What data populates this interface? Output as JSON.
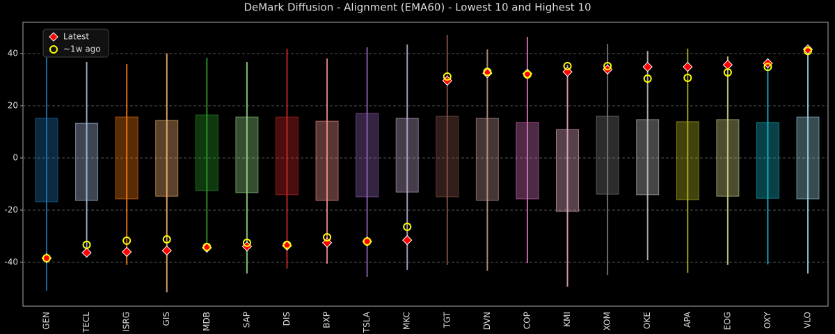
{
  "chart_data": {
    "type": "range_box",
    "title": "DeMark Diffusion - Alignment (EMA60) - Lowest 10 and Highest 10",
    "categories": [
      "GEN",
      "TECL",
      "ISRG",
      "GIS",
      "MDB",
      "SAP",
      "DIS",
      "BXP",
      "TSLA",
      "MKC",
      "TGT",
      "DVN",
      "COP",
      "KMI",
      "XOM",
      "OKE",
      "APA",
      "EOG",
      "OXY",
      "VLO"
    ],
    "colors": [
      "#1f77b4",
      "#aec7e8",
      "#ff7f0e",
      "#ffbb78",
      "#2ca02c",
      "#98df8a",
      "#d62728",
      "#ff9896",
      "#9467bd",
      "#c5b0d5",
      "#8c564b",
      "#c49c94",
      "#e377c2",
      "#f7b6d2",
      "#7f7f7f",
      "#c7c7c7",
      "#bcbd22",
      "#dbdb8d",
      "#17becf",
      "#9edae5"
    ],
    "range_low": [
      -50.9,
      -37,
      -41,
      -51.5,
      -34.7,
      -44.3,
      -42.4,
      -40.5,
      -45.6,
      -42.9,
      -41,
      -43.2,
      -40.3,
      -49.3,
      -44.8,
      -39.2,
      -44,
      -41,
      -40.8,
      -44.3
    ],
    "range_high": [
      43.2,
      36.8,
      36,
      40,
      38.4,
      36.8,
      41.9,
      38.1,
      42.4,
      43.5,
      47.2,
      41.6,
      46.4,
      35.7,
      43.7,
      41,
      41.9,
      38.9,
      36,
      41.9
    ],
    "box_low": [
      -16.8,
      -16.3,
      -15.7,
      -14.7,
      -12.5,
      -13.3,
      -14.1,
      -16.3,
      -14.9,
      -13.1,
      -14.9,
      -16.3,
      -15.7,
      -20.5,
      -13.9,
      -14.1,
      -16,
      -14.7,
      -15.5,
      -15.7
    ],
    "box_high": [
      15.2,
      13.3,
      15.7,
      14.4,
      16.5,
      15.7,
      15.7,
      14.1,
      17.1,
      15.2,
      16,
      15.2,
      13.6,
      10.9,
      16,
      14.7,
      13.9,
      14.7,
      13.6,
      15.7
    ],
    "series": [
      {
        "name": "Latest",
        "color": "#ff0000",
        "values": [
          -38.4,
          -36.3,
          -36,
          -35.5,
          -34.4,
          -33.9,
          -33.6,
          -32.5,
          -32,
          -31.5,
          29.6,
          32.5,
          32.3,
          33,
          33.9,
          34.9,
          34.9,
          35.7,
          36.3,
          41.6
        ]
      },
      {
        "name": "~1w ago",
        "color": "#ffff00",
        "values": [
          -38.4,
          -33.3,
          -31.7,
          -31.2,
          -34.1,
          -32.5,
          -33.3,
          -30.4,
          -32,
          -26.4,
          31.2,
          33,
          32,
          35.2,
          35.2,
          30.4,
          30.7,
          32.8,
          34.9,
          41
        ]
      }
    ],
    "ylim": [
      -56.8,
      52
    ],
    "yticks": [
      -40,
      -20,
      0,
      20,
      40
    ],
    "grid": true,
    "legend": "upper left"
  }
}
